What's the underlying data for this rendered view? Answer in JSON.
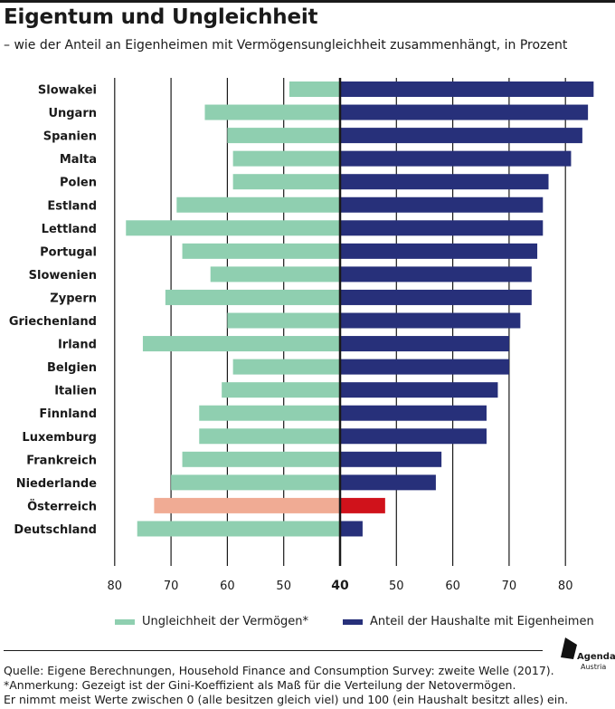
{
  "header": {
    "title": "Eigentum und Ungleichheit",
    "subtitle": "– wie der Anteil an Eigenheimen mit Vermögensungleichheit zusammenhängt, in Prozent"
  },
  "legend": {
    "left_label": "Ungleichheit der Vermögen*",
    "right_label": "Anteil der Haushalte mit Eigenheimen"
  },
  "footer": {
    "source_line1": "Quelle: Eigene Berechnungen, Household Finance and Consumption Survey: zweite Welle (2017).",
    "source_line2": "*Anmerkung: Gezeigt ist der Gini-Koeffizient als Maß für die Verteilung der Netovermögen.",
    "source_line3": "Er nimmt meist Werte zwischen 0 (alle besitzen gleich viel) und 100 (ein Haushalt besitzt alles) ein."
  },
  "logo": {
    "line1": "Agenda",
    "line2": "Austria"
  },
  "colors": {
    "inequality": "#8fcfb0",
    "ownership": "#27307a",
    "highlight_inequality": "#f0ab94",
    "highlight_ownership": "#d0121b",
    "axis": "#1a1a1a"
  },
  "chart_data": {
    "type": "bar",
    "categories": [
      "Slowakei",
      "Ungarn",
      "Spanien",
      "Malta",
      "Polen",
      "Estland",
      "Lettland",
      "Portugal",
      "Slowenien",
      "Zypern",
      "Griechenland",
      "Irland",
      "Belgien",
      "Italien",
      "Finnland",
      "Luxemburg",
      "Frankreich",
      "Niederlande",
      "Österreich",
      "Deutschland"
    ],
    "highlight": "Österreich",
    "series": [
      {
        "name": "Ungleichheit der Vermögen*",
        "side": "left",
        "values": [
          49,
          64,
          60,
          59,
          59,
          69,
          78,
          68,
          63,
          71,
          60,
          75,
          59,
          61,
          65,
          65,
          68,
          70,
          73,
          76
        ]
      },
      {
        "name": "Anteil der Haushalte mit Eigenheimen",
        "side": "right",
        "values": [
          85,
          84,
          83,
          81,
          77,
          76,
          76,
          75,
          74,
          74,
          72,
          70,
          70,
          68,
          66,
          66,
          58,
          57,
          48,
          44
        ]
      }
    ],
    "left_axis": {
      "ticks": [
        "80",
        "70",
        "60",
        "50"
      ],
      "tick_values": [
        80,
        70,
        60,
        50
      ],
      "range": [
        40,
        85
      ]
    },
    "right_axis": {
      "ticks": [
        "50",
        "60",
        "70",
        "80"
      ],
      "tick_values": [
        50,
        60,
        70,
        80
      ],
      "range": [
        40,
        85
      ]
    },
    "center_label": "40",
    "grid": true,
    "legend_position": "bottom"
  }
}
